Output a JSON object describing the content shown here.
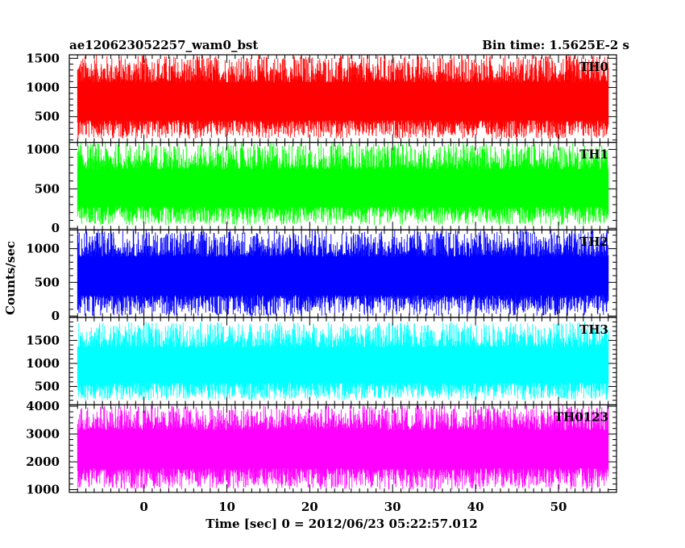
{
  "chart_data": {
    "type": "line",
    "title": "ae120623052257_wam0_bst",
    "bin_time_label": "Bin time: 1.5625E-2 s",
    "xlabel": "Time [sec] 0 = 2012/06/23 05:22:57.012",
    "ylabel": "Counts/sec",
    "xlim": [
      -9,
      57
    ],
    "data_x_range": [
      -8,
      56
    ],
    "x_ticks": [
      0,
      10,
      20,
      30,
      40,
      50
    ],
    "x_tick_labels": [
      "0",
      "10",
      "20",
      "30",
      "40",
      "50"
    ],
    "grid": false,
    "panels": [
      {
        "name": "TH0",
        "color": "#ff0000",
        "ylim": [
          60,
          1560
        ],
        "y_ticks": [
          500,
          1000,
          1500
        ],
        "y_tick_labels": [
          "500",
          "1000",
          "1500"
        ],
        "mean": 700,
        "low": 120,
        "high": 1560
      },
      {
        "name": "TH1",
        "color": "#00ff00",
        "ylim": [
          -20,
          1090
        ],
        "y_ticks": [
          0,
          500,
          1000
        ],
        "y_tick_labels": [
          "0",
          "500",
          "1000"
        ],
        "mean": 470,
        "low": 40,
        "high": 1090
      },
      {
        "name": "TH2",
        "color": "#0000ff",
        "ylim": [
          -20,
          1280
        ],
        "y_ticks": [
          0,
          500,
          1000
        ],
        "y_tick_labels": [
          "0",
          "500",
          "1000"
        ],
        "mean": 560,
        "low": 0,
        "high": 1280
      },
      {
        "name": "TH3",
        "color": "#00ffff",
        "ylim": [
          100,
          2000
        ],
        "y_ticks": [
          500,
          1000,
          1500
        ],
        "y_tick_labels": [
          "500",
          "1000",
          "1500"
        ],
        "mean": 900,
        "low": 200,
        "high": 1900
      },
      {
        "name": "TH0123",
        "color": "#ff00ff",
        "ylim": [
          900,
          4050
        ],
        "y_ticks": [
          1000,
          2000,
          3000,
          4000
        ],
        "y_tick_labels": [
          "1000",
          "2000",
          "3000",
          "4000"
        ],
        "mean": 2400,
        "low": 1000,
        "high": 4050
      }
    ]
  }
}
